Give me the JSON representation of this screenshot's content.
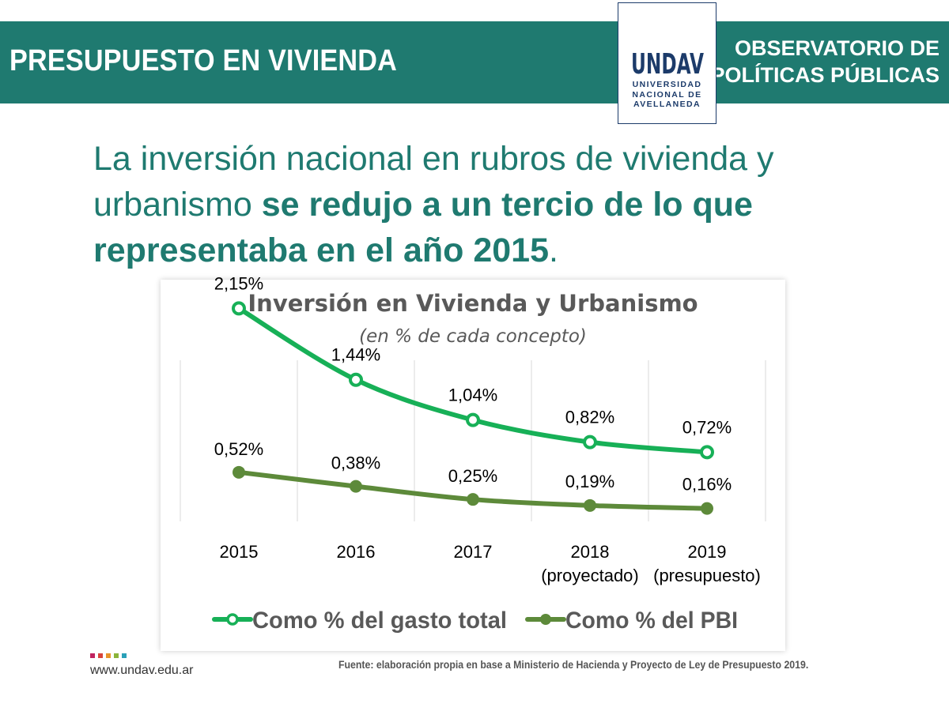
{
  "header": {
    "title": "PRESUPUESTO EN VIVIENDA",
    "right_line1": "OBSERVATORIO DE",
    "right_line2": "POLÍTICAS PÚBLICAS",
    "logo_mark": "UNDAV",
    "logo_line1": "UNIVERSIDAD",
    "logo_line2": "NACIONAL DE",
    "logo_line3": "AVELLANEDA"
  },
  "headline": {
    "light": "La inversión nacional en rubros de vivienda y urbanismo ",
    "bold": "se redujo a un tercio de lo que representaba en el año 2015",
    "end": "."
  },
  "footer": {
    "url": "www.undav.edu.ar",
    "source": "Fuente: elaboración propia en base a Ministerio de Hacienda y Proyecto de Ley de Presupuesto 2019.",
    "dot_colors": [
      "#c0245f",
      "#d8453a",
      "#e8952a",
      "#8bb43a",
      "#2aa0b8"
    ]
  },
  "colors": {
    "band": "#1f7a70",
    "navy": "#1c3b6a",
    "series_gasto": "#17b057",
    "series_pbi": "#5d8a3a"
  },
  "chart_data": {
    "type": "line",
    "title": "Inversión en Vivienda y Urbanismo",
    "subtitle": "(en % de cada concepto)",
    "categories": [
      [
        "2015"
      ],
      [
        "2016"
      ],
      [
        "2017"
      ],
      [
        "2018",
        "(proyectado)"
      ],
      [
        "2019",
        "(presupuesto)"
      ]
    ],
    "series": [
      {
        "name": "Como % del gasto total",
        "values": [
          2.15,
          1.44,
          1.04,
          0.82,
          0.72
        ],
        "labels": [
          "2,15%",
          "1,44%",
          "1,04%",
          "0,82%",
          "0,72%"
        ],
        "marker": "hollow-circle",
        "color": "#17b057"
      },
      {
        "name": "Como % del PBI",
        "values": [
          0.52,
          0.38,
          0.25,
          0.19,
          0.16
        ],
        "labels": [
          "0,52%",
          "0,38%",
          "0,25%",
          "0,19%",
          "0,16%"
        ],
        "marker": "filled-circle",
        "color": "#5d8a3a"
      }
    ],
    "xlabel": "",
    "ylabel": "",
    "ylim": [
      0,
      2.2
    ],
    "grid": "vertical",
    "legend": "bottom"
  }
}
